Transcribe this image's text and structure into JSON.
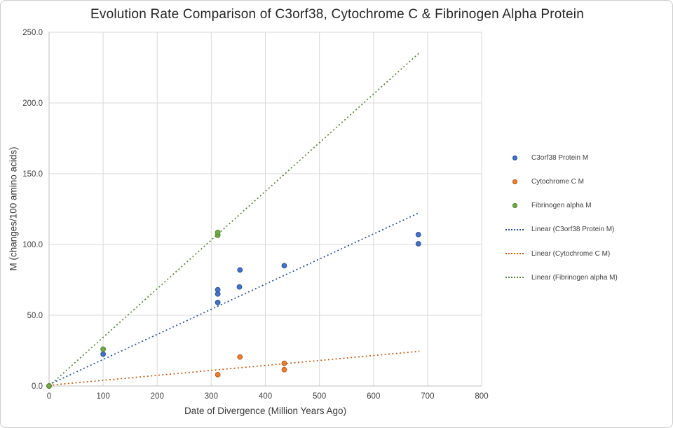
{
  "chart_data": {
    "type": "scatter",
    "title": "Evolution Rate Comparison of C3orf38, Cytochrome C & Fibrinogen Alpha Protein",
    "xlabel": "Date of Divergence (Million Years Ago)",
    "ylabel": "M (changes/100 amino acids)",
    "xlim": [
      0,
      800
    ],
    "ylim": [
      0,
      250
    ],
    "grid": true,
    "legend_position": "right",
    "x_ticks": {
      "values": [
        0,
        100,
        200,
        300,
        400,
        500,
        600,
        700,
        800
      ],
      "labels": [
        "0",
        "100",
        "200",
        "300",
        "400",
        "500",
        "600",
        "700",
        "800"
      ]
    },
    "y_ticks": {
      "values": [
        0,
        50,
        100,
        150,
        200,
        250
      ],
      "labels": [
        "0.0",
        "50.0",
        "100.0",
        "150.0",
        "200.0",
        "250.0"
      ]
    },
    "series": [
      {
        "name": "C3orf38 Protein M",
        "color": "#4472c4",
        "border": "#2c55a0",
        "points": [
          [
            0,
            0
          ],
          [
            100,
            22.5
          ],
          [
            312,
            59
          ],
          [
            312,
            65
          ],
          [
            312,
            68
          ],
          [
            352,
            70
          ],
          [
            353,
            82
          ],
          [
            435,
            85
          ],
          [
            683,
            100.5
          ],
          [
            683,
            107
          ]
        ]
      },
      {
        "name": "Cytochrome C M",
        "color": "#ed7d31",
        "border": "#b55f1e",
        "points": [
          [
            0,
            0
          ],
          [
            312,
            8
          ],
          [
            353,
            20.5
          ],
          [
            435,
            11.5
          ],
          [
            435,
            16
          ]
        ]
      },
      {
        "name": "Fibrinogen alpha M",
        "color": "#70ad47",
        "border": "#548235",
        "points": [
          [
            0,
            0
          ],
          [
            100,
            26
          ],
          [
            312,
            106.5
          ],
          [
            312,
            108.5
          ]
        ]
      }
    ],
    "trendlines": [
      {
        "name": "Linear (C3orf38 Protein M)",
        "color": "#2a4d8f",
        "x": [
          0,
          685
        ],
        "y": [
          1,
          122.5
        ]
      },
      {
        "name": "Linear (Cytochrome C M)",
        "color": "#c55a11",
        "x": [
          0,
          685
        ],
        "y": [
          0.5,
          24.5
        ]
      },
      {
        "name": "Linear (Fibrinogen alpha M)",
        "color": "#548235",
        "x": [
          0,
          685
        ],
        "y": [
          0,
          235.5
        ]
      }
    ],
    "legend": [
      {
        "label": "C3orf38 Protein M",
        "marker": "dot",
        "color": "#4472c4",
        "border": "#2c55a0"
      },
      {
        "label": "Cytochrome C M",
        "marker": "dot",
        "color": "#ed7d31",
        "border": "#b55f1e"
      },
      {
        "label": "Fibrinogen alpha M",
        "marker": "dot",
        "color": "#70ad47",
        "border": "#548235"
      },
      {
        "label": "Linear (C3orf38 Protein M)",
        "marker": "dotted-line",
        "color": "#2a4d8f"
      },
      {
        "label": "Linear (Cytochrome C M)",
        "marker": "dotted-line",
        "color": "#c55a11"
      },
      {
        "label": "Linear (Fibrinogen alpha M)",
        "marker": "dotted-line",
        "color": "#548235"
      }
    ],
    "style": {
      "grid_color": "#d9d9d9",
      "axis_color": "#bfbfbf",
      "background": "#ffffff"
    }
  }
}
